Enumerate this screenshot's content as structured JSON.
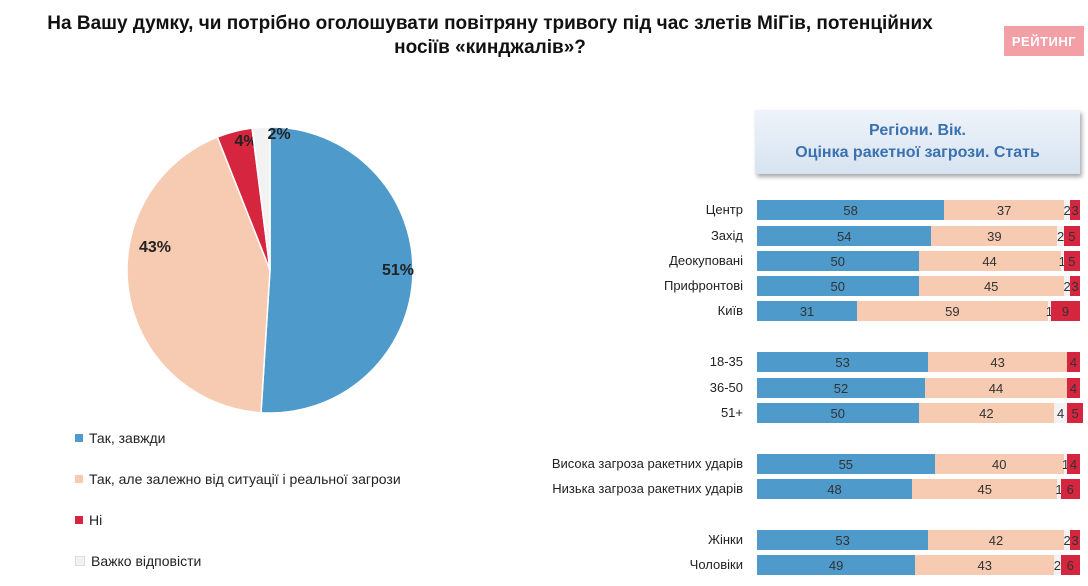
{
  "title_line1": "На Вашу думку, чи потрібно оголошувати повітряну тривогу під час злетів МіГів, потенційних",
  "title_line2": "носіїв «кинджалів»?",
  "logo": "РЕЙТИНГ",
  "colors": {
    "yes_always": "#4d9acb",
    "yes_depends": "#f7cbb1",
    "no": "#d6253f",
    "hard": "#f2f2f2"
  },
  "chart_data": [
    {
      "type": "pie",
      "slices": [
        {
          "name": "Так, завжди",
          "value": 51,
          "label": "51%"
        },
        {
          "name": "Так, але залежно від ситуації і реальної загрози",
          "value": 43,
          "label": "43%"
        },
        {
          "name": "Ні",
          "value": 4,
          "label": "4%"
        },
        {
          "name": "Важко відповісти",
          "value": 2,
          "label": "2%"
        }
      ]
    },
    {
      "type": "bar",
      "orientation": "horizontal",
      "stacked": true,
      "title_line1": "Регіони. Вік.",
      "title_line2": "Оцінка ракетної загрози. Стать",
      "series_order": [
        "Так, завжди",
        "Так, але залежно від ситуації і реальної загрози",
        "Важко відповісти",
        "Ні"
      ],
      "groups": [
        {
          "rows": [
            {
              "label": "Центр",
              "values": [
                58,
                37,
                2,
                3
              ]
            },
            {
              "label": "Захід",
              "values": [
                54,
                39,
                2,
                5
              ]
            },
            {
              "label": "Деокуповані",
              "values": [
                50,
                44,
                1,
                5
              ]
            },
            {
              "label": "Прифронтові",
              "values": [
                50,
                45,
                2,
                3
              ]
            },
            {
              "label": "Київ",
              "values": [
                31,
                59,
                1,
                9
              ]
            }
          ]
        },
        {
          "rows": [
            {
              "label": "18-35",
              "values": [
                53,
                43,
                null,
                4
              ]
            },
            {
              "label": "36-50",
              "values": [
                52,
                44,
                null,
                4
              ]
            },
            {
              "label": "51+",
              "values": [
                50,
                42,
                4,
                5
              ]
            }
          ]
        },
        {
          "rows": [
            {
              "label": "Висока загроза ракетних ударів",
              "values": [
                55,
                40,
                1,
                4
              ]
            },
            {
              "label": "Низька загроза ракетних ударів",
              "values": [
                48,
                45,
                1,
                6
              ]
            }
          ]
        },
        {
          "rows": [
            {
              "label": "Жінки",
              "values": [
                53,
                42,
                2,
                3
              ]
            },
            {
              "label": "Чоловіки",
              "values": [
                49,
                43,
                2,
                6
              ]
            }
          ]
        }
      ]
    }
  ]
}
